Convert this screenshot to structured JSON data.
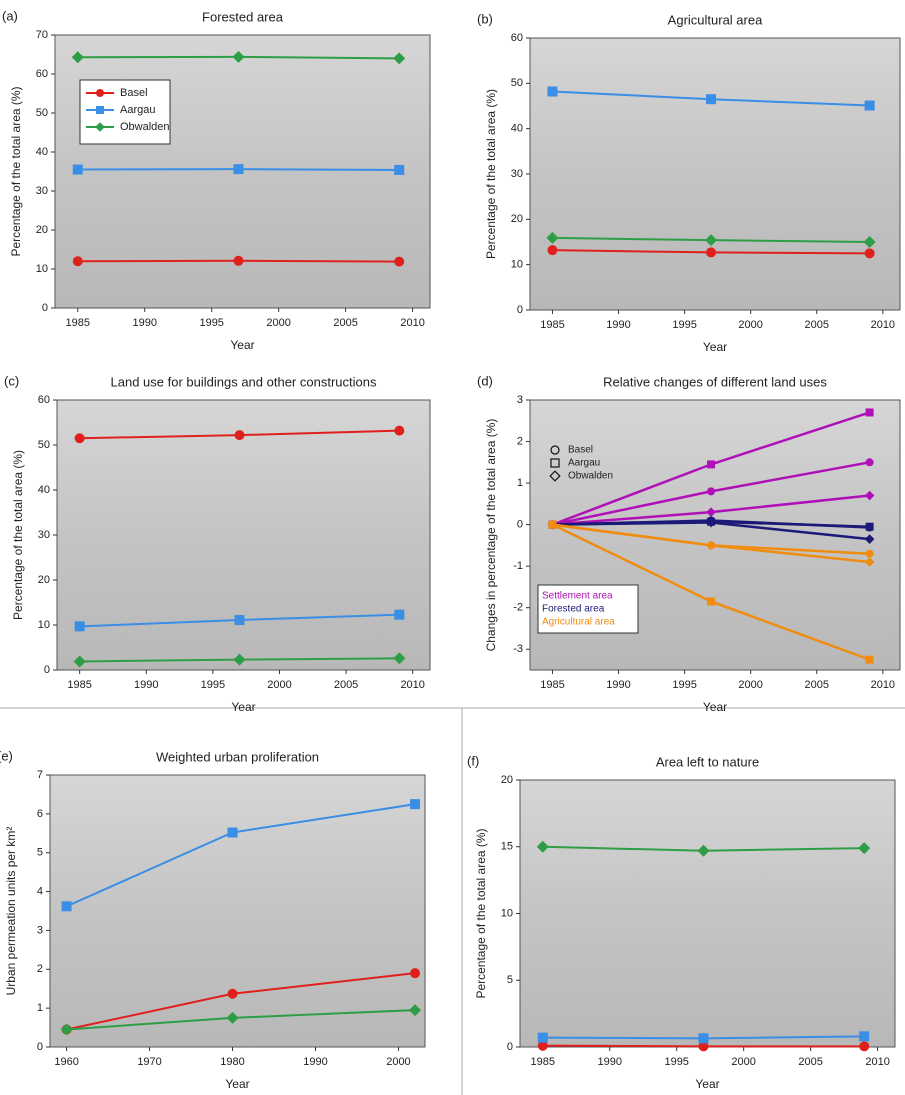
{
  "chart_data": [
    {
      "type": "line",
      "label": "(a)",
      "title": "Forested area",
      "xlabel": "Year",
      "ylabel": "Percentage of the total area (%)",
      "x": [
        1985,
        1997,
        2009
      ],
      "xlim": [
        1983.3,
        2011.3
      ],
      "xticks": [
        1985,
        1990,
        1995,
        2000,
        2005,
        2010
      ],
      "ylim": [
        0,
        70
      ],
      "yticks": [
        0,
        10,
        20,
        30,
        40,
        50,
        60,
        70
      ],
      "legend": "upper left",
      "series": [
        {
          "name": "Basel",
          "color": "#e0201c",
          "marker": "circle",
          "values": [
            12,
            12.1,
            11.9
          ]
        },
        {
          "name": "Aargau",
          "color": "#3a8ee6",
          "marker": "square",
          "values": [
            35.5,
            35.6,
            35.4
          ]
        },
        {
          "name": "Obwalden",
          "color": "#2e9e46",
          "marker": "diamond",
          "values": [
            64.3,
            64.4,
            64
          ]
        }
      ]
    },
    {
      "type": "line",
      "label": "(b)",
      "title": "Agricultural area",
      "xlabel": "Year",
      "ylabel": "Percentage of the total area (%)",
      "x": [
        1985,
        1997,
        2009
      ],
      "xlim": [
        1983.3,
        2011.3
      ],
      "xticks": [
        1985,
        1990,
        1995,
        2000,
        2005,
        2010
      ],
      "ylim": [
        0,
        60
      ],
      "yticks": [
        0,
        10,
        20,
        30,
        40,
        50,
        60
      ],
      "series": [
        {
          "color": "#e0201c",
          "marker": "circle",
          "values": [
            13.2,
            12.7,
            12.5
          ]
        },
        {
          "color": "#3a8ee6",
          "marker": "square",
          "values": [
            48.2,
            46.5,
            45.1
          ]
        },
        {
          "color": "#2e9e46",
          "marker": "diamond",
          "values": [
            15.9,
            15.4,
            15
          ]
        }
      ]
    },
    {
      "type": "line",
      "label": "(c)",
      "title": "Land use for buildings and other constructions",
      "xlabel": "Year",
      "ylabel": "Percentage of the total area (%)",
      "x": [
        1985,
        1997,
        2009
      ],
      "xlim": [
        1983.3,
        2011.3
      ],
      "xticks": [
        1985,
        1990,
        1995,
        2000,
        2005,
        2010
      ],
      "ylim": [
        0,
        60
      ],
      "yticks": [
        0,
        10,
        20,
        30,
        40,
        50,
        60
      ],
      "series": [
        {
          "color": "#e0201c",
          "marker": "circle",
          "values": [
            51.5,
            52.2,
            53.2
          ]
        },
        {
          "color": "#3a8ee6",
          "marker": "square",
          "values": [
            9.7,
            11.1,
            12.3
          ]
        },
        {
          "color": "#2e9e46",
          "marker": "diamond",
          "values": [
            1.9,
            2.3,
            2.6
          ]
        }
      ]
    },
    {
      "type": "line",
      "label": "(d)",
      "title": "Relative changes of different land uses",
      "xlabel": "Year",
      "ylabel": "Changes in percentage of the total area  (%)",
      "x": [
        1985,
        1997,
        2009
      ],
      "xlim": [
        1983.3,
        2011.3
      ],
      "xticks": [
        1985,
        1990,
        1995,
        2000,
        2005,
        2010
      ],
      "ylim": [
        -3.5,
        3
      ],
      "yticks": [
        -3,
        -2,
        -1,
        0,
        1,
        2,
        3
      ],
      "shape_legend": [
        {
          "name": "Basel",
          "marker": "circle"
        },
        {
          "name": "Aargau",
          "marker": "square"
        },
        {
          "name": "Obwalden",
          "marker": "diamond"
        }
      ],
      "color_legend": [
        {
          "name": "Settlement area",
          "color": "#b010b8"
        },
        {
          "name": "Forested area",
          "color": "#1c1a78"
        },
        {
          "name": "Agricultural area",
          "color": "#f08c10"
        }
      ],
      "series": [
        {
          "color": "#b010b8",
          "marker": "circle",
          "values": [
            0,
            0.8,
            1.5
          ]
        },
        {
          "color": "#b010b8",
          "marker": "square",
          "values": [
            0,
            1.45,
            2.7
          ]
        },
        {
          "color": "#b010b8",
          "marker": "diamond",
          "values": [
            0,
            0.3,
            0.7
          ]
        },
        {
          "color": "#1c1a78",
          "marker": "circle",
          "values": [
            0,
            0.1,
            -0.07
          ]
        },
        {
          "color": "#1c1a78",
          "marker": "square",
          "values": [
            0,
            0.07,
            -0.05
          ]
        },
        {
          "color": "#1c1a78",
          "marker": "diamond",
          "values": [
            0,
            0.05,
            -0.35
          ]
        },
        {
          "color": "#f08c10",
          "marker": "circle",
          "values": [
            0,
            -0.5,
            -0.7
          ]
        },
        {
          "color": "#f08c10",
          "marker": "square",
          "values": [
            0,
            -1.85,
            -3.25
          ]
        },
        {
          "color": "#f08c10",
          "marker": "diamond",
          "values": [
            0,
            -0.5,
            -0.9
          ]
        }
      ]
    },
    {
      "type": "line",
      "label": "(e)",
      "title": "Weighted urban proliferation",
      "xlabel": "Year",
      "ylabel": "Urban permeation units per km²",
      "x": [
        1960,
        1980,
        2002
      ],
      "xlim": [
        1958,
        2003.2
      ],
      "xticks": [
        1960,
        1970,
        1980,
        1990,
        2000
      ],
      "ylim": [
        0,
        7
      ],
      "yticks": [
        0,
        1,
        2,
        3,
        4,
        5,
        6,
        7
      ],
      "series": [
        {
          "color": "#e0201c",
          "marker": "circle",
          "values": [
            0.45,
            1.37,
            1.9
          ]
        },
        {
          "color": "#3a8ee6",
          "marker": "square",
          "values": [
            3.62,
            5.52,
            6.25
          ]
        },
        {
          "color": "#2e9e46",
          "marker": "diamond",
          "values": [
            0.45,
            0.75,
            0.95
          ]
        }
      ]
    },
    {
      "type": "line",
      "label": "(f)",
      "title": "Area left to nature",
      "xlabel": "Year",
      "ylabel": "Percentage of the total area (%)",
      "x": [
        1985,
        1997,
        2009
      ],
      "xlim": [
        1983.3,
        2011.3
      ],
      "xticks": [
        1985,
        1990,
        1995,
        2000,
        2005,
        2010
      ],
      "ylim": [
        0,
        20
      ],
      "yticks": [
        0,
        5,
        10,
        15,
        20
      ],
      "series": [
        {
          "color": "#e0201c",
          "marker": "circle",
          "values": [
            0.1,
            0.05,
            0.05
          ]
        },
        {
          "color": "#3a8ee6",
          "marker": "square",
          "values": [
            0.7,
            0.65,
            0.8
          ]
        },
        {
          "color": "#2e9e46",
          "marker": "diamond",
          "values": [
            15,
            14.7,
            14.9
          ]
        }
      ]
    }
  ]
}
